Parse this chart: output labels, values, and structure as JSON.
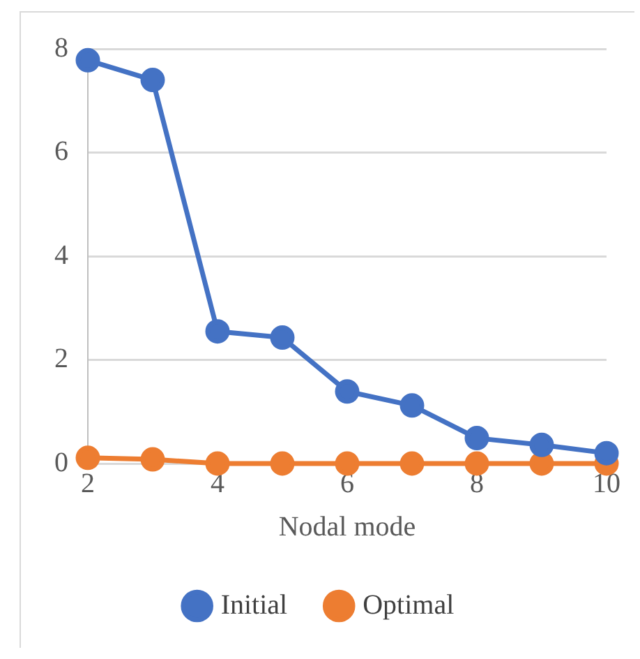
{
  "chart_data": {
    "type": "line",
    "xlabel": "Nodal mode",
    "x": [
      2,
      3,
      4,
      5,
      6,
      7,
      8,
      9,
      10
    ],
    "xlim": [
      2,
      10
    ],
    "xticks": [
      2,
      4,
      6,
      8,
      10
    ],
    "ylim": [
      0,
      8
    ],
    "yticks": [
      0,
      2,
      4,
      6,
      8
    ],
    "grid": "y",
    "legend": "bottom",
    "marker": "circle",
    "line_style": "solid",
    "series": [
      {
        "name": "Initial",
        "color": "#4472c4",
        "values": [
          7.78,
          7.4,
          2.55,
          2.43,
          1.39,
          1.12,
          0.49,
          0.36,
          0.2
        ]
      },
      {
        "name": "Optimal",
        "color": "#ed7d31",
        "values": [
          0.11,
          0.08,
          0,
          0,
          0,
          0,
          0,
          0,
          0
        ]
      }
    ]
  }
}
